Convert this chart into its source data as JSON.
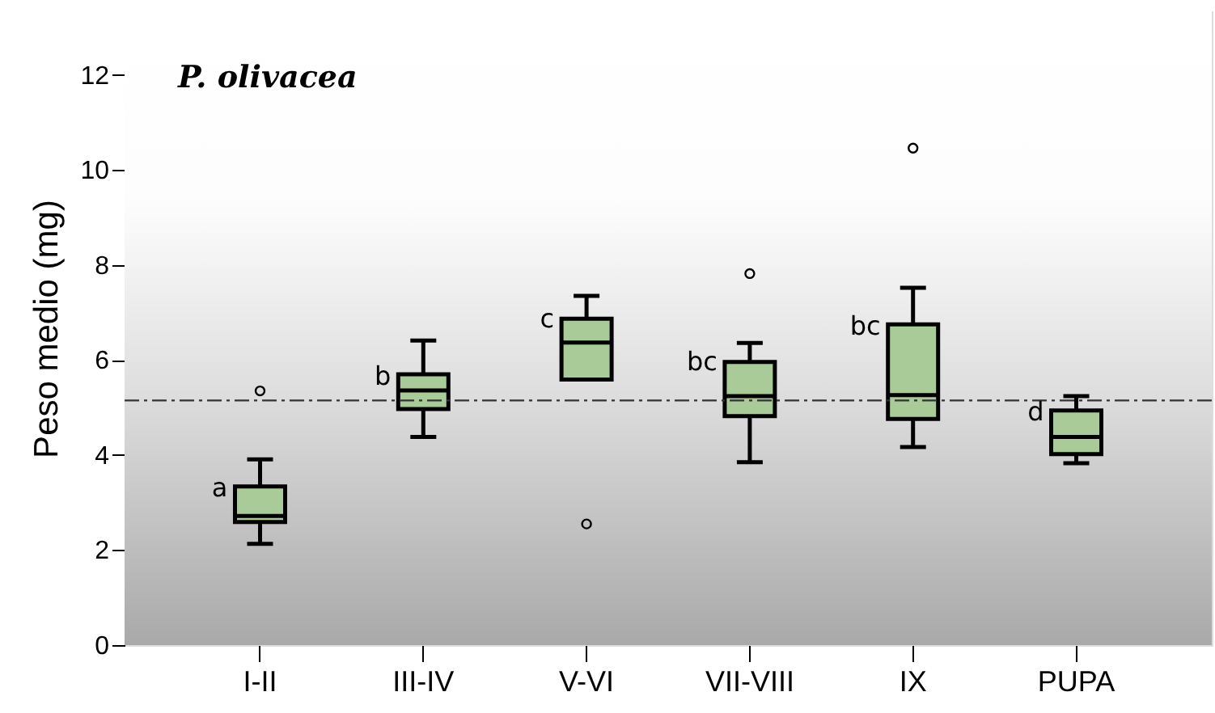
{
  "chart_data": {
    "type": "box",
    "categories": [
      "I-II",
      "III-IV",
      "V-VI",
      "VII-VIII",
      "IX",
      "PUPA"
    ],
    "color": "#a8cb98",
    "boxes": [
      {
        "low": 2.13,
        "q1": 2.59,
        "median": 2.72,
        "q3": 3.34,
        "high": 3.91,
        "outliers": [
          5.35
        ]
      },
      {
        "low": 4.38,
        "q1": 4.97,
        "median": 5.36,
        "q3": 5.7,
        "high": 6.41
      },
      {
        "low": 5.59,
        "q1": 5.59,
        "median": 6.37,
        "q3": 6.87,
        "high": 7.35,
        "outliers": [
          2.55
        ]
      },
      {
        "low": 3.85,
        "q1": 4.82,
        "median": 5.24,
        "q3": 5.96,
        "high": 6.36,
        "outliers": [
          7.82
        ]
      },
      {
        "low": 4.17,
        "q1": 4.76,
        "median": 5.26,
        "q3": 6.75,
        "high": 7.52,
        "outliers": [
          10.46
        ]
      },
      {
        "low": 3.83,
        "q1": 4.02,
        "median": 4.38,
        "q3": 4.94,
        "high": 5.24
      }
    ],
    "ylabel": "Peso medio (mg)",
    "ylim": [
      0,
      13.34
    ],
    "yticks": [
      0,
      2,
      4,
      6,
      8,
      10,
      12
    ],
    "ref_lines": [
      {
        "axis": "y",
        "value": 5.15,
        "label": null,
        "line_style": "dashed",
        "color": "#333333"
      }
    ],
    "annotations": [
      "P. olivacea",
      {
        "text": "a",
        "x": "I-II",
        "y": 3.3
      },
      {
        "text": "b",
        "x": "III-IV",
        "y": 5.65
      },
      {
        "text": "c",
        "x": "V-VI",
        "y": 6.85
      },
      {
        "text": "bc",
        "x": "VII-VIII",
        "y": 5.95
      },
      {
        "text": "bc",
        "x": "IX",
        "y": 6.7
      },
      {
        "text": "d",
        "x": "PUPA",
        "y": 4.9
      }
    ]
  }
}
